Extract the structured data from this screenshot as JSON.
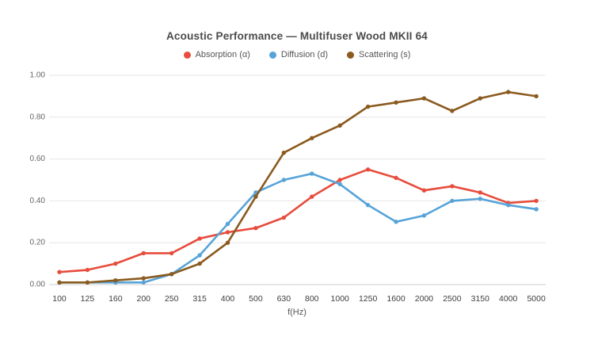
{
  "chart_data": {
    "type": "line",
    "title": "Acoustic Performance — Multifuser Wood MKII 64",
    "xlabel": "f(Hz)",
    "ylabel": "",
    "ylim": [
      0,
      1.0
    ],
    "ytick_values": [
      0,
      0.2,
      0.4,
      0.6,
      0.8,
      1.0
    ],
    "ytick_labels": [
      "0.00",
      "0.20",
      "0.40",
      "0.60",
      "0.80",
      "1.00"
    ],
    "grid": true,
    "grid_color": "#e6e6e6",
    "axis_line_color": "#cccccc",
    "background_color": "#ffffff",
    "legend_position": "top",
    "categories": [
      "100",
      "125",
      "160",
      "200",
      "250",
      "315",
      "400",
      "500",
      "630",
      "800",
      "1000",
      "1250",
      "1600",
      "2000",
      "2500",
      "3150",
      "4000",
      "5000"
    ],
    "series": [
      {
        "name": "Absorption (α)",
        "color": "#e74c3c",
        "values": [
          0.06,
          0.07,
          0.1,
          0.15,
          0.15,
          0.22,
          0.25,
          0.27,
          0.32,
          0.42,
          0.5,
          0.55,
          0.51,
          0.45,
          0.47,
          0.44,
          0.39,
          0.4
        ]
      },
      {
        "name": "Diffusion (d)",
        "color": "#56a3d8",
        "values": [
          0.01,
          0.01,
          0.01,
          0.01,
          0.05,
          0.14,
          0.29,
          0.44,
          0.5,
          0.53,
          0.48,
          0.38,
          0.3,
          0.33,
          0.4,
          0.41,
          0.38,
          0.36
        ]
      },
      {
        "name": "Scattering (s)",
        "color": "#8a5a1e",
        "values": [
          0.01,
          0.01,
          0.02,
          0.03,
          0.05,
          0.1,
          0.2,
          0.42,
          0.63,
          0.7,
          0.76,
          0.85,
          0.87,
          0.89,
          0.83,
          0.89,
          0.92,
          0.9
        ]
      }
    ]
  }
}
